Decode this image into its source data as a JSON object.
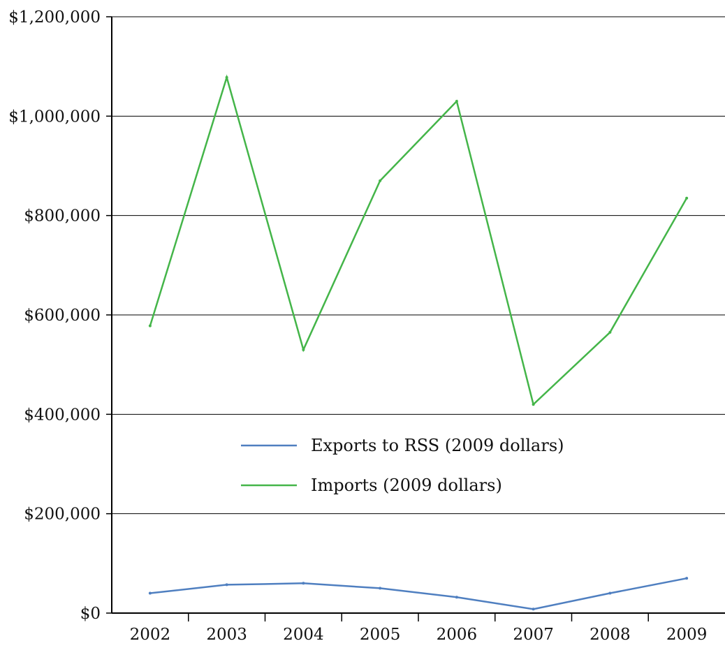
{
  "chart_data": {
    "type": "line",
    "title": "",
    "xlabel": "",
    "ylabel": "",
    "categories": [
      "2002",
      "2003",
      "2004",
      "2005",
      "2006",
      "2007",
      "2008",
      "2009"
    ],
    "y_ticks": [
      "$0",
      "$200,000",
      "$400,000",
      "$600,000",
      "$800,000",
      "$1,000,000",
      "$1,200,000"
    ],
    "ylim": [
      0,
      1200000
    ],
    "grid": true,
    "legend_position": "center",
    "series": [
      {
        "name": "Exports to RSS (2009 dollars)",
        "color": "#4f7fc0",
        "values": [
          40000,
          57000,
          60000,
          50000,
          32000,
          8000,
          40000,
          70000
        ]
      },
      {
        "name": "Imports (2009 dollars)",
        "color": "#44b549",
        "values": [
          578000,
          1078000,
          530000,
          870000,
          1030000,
          420000,
          565000,
          835000
        ]
      }
    ]
  }
}
